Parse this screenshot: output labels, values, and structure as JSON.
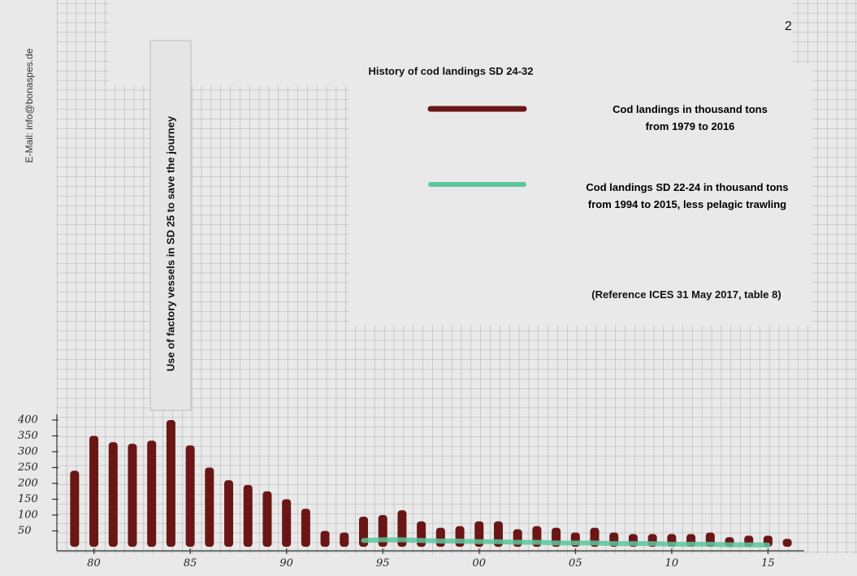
{
  "email": "E-Mail: info@bonaspes.de",
  "page_number": "2",
  "chart_data": {
    "type": "bar",
    "title": "History of cod landings SD 24-32",
    "annotations": [
      "Use of factory vessels in SD 25 to save the journey",
      "(Reference ICES 31 May 2017, table 8)"
    ],
    "x": [
      1979,
      1980,
      1981,
      1982,
      1983,
      1984,
      1985,
      1986,
      1987,
      1988,
      1989,
      1990,
      1991,
      1992,
      1993,
      1994,
      1995,
      1996,
      1997,
      1998,
      1999,
      2000,
      2001,
      2002,
      2003,
      2004,
      2005,
      2006,
      2007,
      2008,
      2009,
      2010,
      2011,
      2012,
      2013,
      2014,
      2015,
      2016
    ],
    "xlim": [
      1978.5,
      2016.5
    ],
    "xticks": [
      {
        "value": 1980,
        "label": "80"
      },
      {
        "value": 1985,
        "label": "85"
      },
      {
        "value": 1990,
        "label": "90"
      },
      {
        "value": 1995,
        "label": "95"
      },
      {
        "value": 2000,
        "label": "00"
      },
      {
        "value": 2005,
        "label": "05"
      },
      {
        "value": 2010,
        "label": "10"
      },
      {
        "value": 2015,
        "label": "15"
      }
    ],
    "ylim": [
      0,
      400
    ],
    "yticks": [
      50,
      100,
      150,
      200,
      250,
      300,
      350,
      400
    ],
    "grid": true,
    "series": [
      {
        "name": "Cod landings in thousand tons from 1979 to 2016",
        "type": "bar",
        "color": "#6a1616",
        "values": [
          240,
          350,
          330,
          325,
          335,
          400,
          320,
          250,
          210,
          195,
          175,
          150,
          120,
          50,
          45,
          95,
          100,
          115,
          80,
          60,
          65,
          80,
          80,
          55,
          65,
          60,
          45,
          60,
          45,
          40,
          40,
          40,
          40,
          45,
          30,
          35,
          35,
          25
        ]
      },
      {
        "name": "Cod landings SD 22-24 in thousand tons from 1994 to 2015, less pelagic trawling",
        "type": "line",
        "color": "#5cc79d",
        "values": [
          null,
          null,
          null,
          null,
          null,
          null,
          null,
          null,
          null,
          null,
          null,
          null,
          null,
          null,
          null,
          20,
          22,
          22,
          20,
          18,
          18,
          16,
          16,
          14,
          14,
          12,
          12,
          12,
          10,
          10,
          10,
          8,
          8,
          8,
          6,
          6,
          5,
          null
        ]
      }
    ]
  }
}
